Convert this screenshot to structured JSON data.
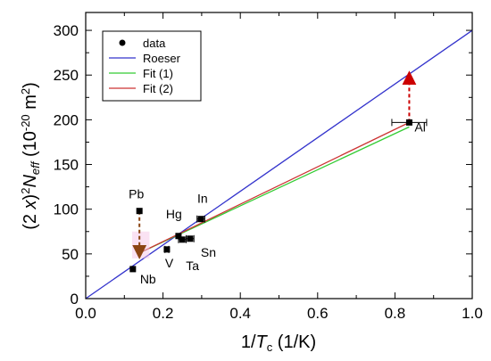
{
  "chart_data": {
    "type": "scatter",
    "title": "",
    "xlabel": {
      "prefix": "1/",
      "main": "T",
      "sub": "c",
      "suffix": " (1/K)"
    },
    "ylabel": {
      "pre": "(2 ",
      "x": "x",
      "close": ")",
      "sup1": "2",
      "N": "N",
      "sub": "eff",
      "unit_open": " (10",
      "unit_exp": "-20",
      "unit_mid": " m",
      "unit_exp2": "2",
      "unit_close": ")"
    },
    "xlim": [
      0.0,
      1.0
    ],
    "ylim": [
      0,
      320
    ],
    "xticks": [
      0.0,
      0.2,
      0.4,
      0.6,
      0.8,
      1.0
    ],
    "xtick_labels": [
      "0.0",
      "0.2",
      "0.4",
      "0.6",
      "0.8",
      "1.0"
    ],
    "yticks": [
      0,
      50,
      100,
      150,
      200,
      250,
      300
    ],
    "ytick_labels": [
      "0",
      "50",
      "100",
      "150",
      "200",
      "250",
      "300"
    ],
    "grid": false,
    "legend_position": "top-left",
    "legend": [
      {
        "label": "data",
        "kind": "marker",
        "color": "#000000"
      },
      {
        "label": "Roeser",
        "kind": "line",
        "color": "#3333cc"
      },
      {
        "label": "Fit (1)",
        "kind": "line",
        "color": "#33cc33"
      },
      {
        "label": "Fit (2)",
        "kind": "line",
        "color": "#cc3333"
      }
    ],
    "points": [
      {
        "label": "Pb",
        "x": 0.139,
        "y": 98,
        "xerr": 0.0
      },
      {
        "label": "Nb",
        "x": 0.122,
        "y": 33,
        "xerr": 0.0
      },
      {
        "label": "V",
        "x": 0.21,
        "y": 55,
        "xerr": 0.005
      },
      {
        "label": "Ta",
        "x": 0.25,
        "y": 66,
        "xerr": 0.01
      },
      {
        "label": "Sn",
        "x": 0.27,
        "y": 67,
        "xerr": 0.01
      },
      {
        "label": "Hg",
        "x": 0.24,
        "y": 70,
        "xerr": 0.0
      },
      {
        "label": "In",
        "x": 0.298,
        "y": 89,
        "xerr": 0.01
      },
      {
        "label": "Al",
        "x": 0.837,
        "y": 197,
        "xerr": 0.045
      }
    ],
    "series": [
      {
        "name": "Roeser",
        "color": "#3333cc",
        "x": [
          0.0,
          1.0
        ],
        "y": [
          0,
          300
        ]
      },
      {
        "name": "Fit (1)",
        "color": "#33cc33",
        "x": [
          0.139,
          0.837
        ],
        "y": [
          51,
          192
        ]
      },
      {
        "name": "Fit (2)",
        "color": "#cc3333",
        "x": [
          0.139,
          0.837
        ],
        "y": [
          51,
          197
        ]
      }
    ],
    "arrows": [
      {
        "x": 0.139,
        "y_from": 98,
        "y_to": 52,
        "color": "#8B4513"
      },
      {
        "x": 0.837,
        "y_from": 197,
        "y_to": 247,
        "color": "#cc0000"
      }
    ]
  }
}
